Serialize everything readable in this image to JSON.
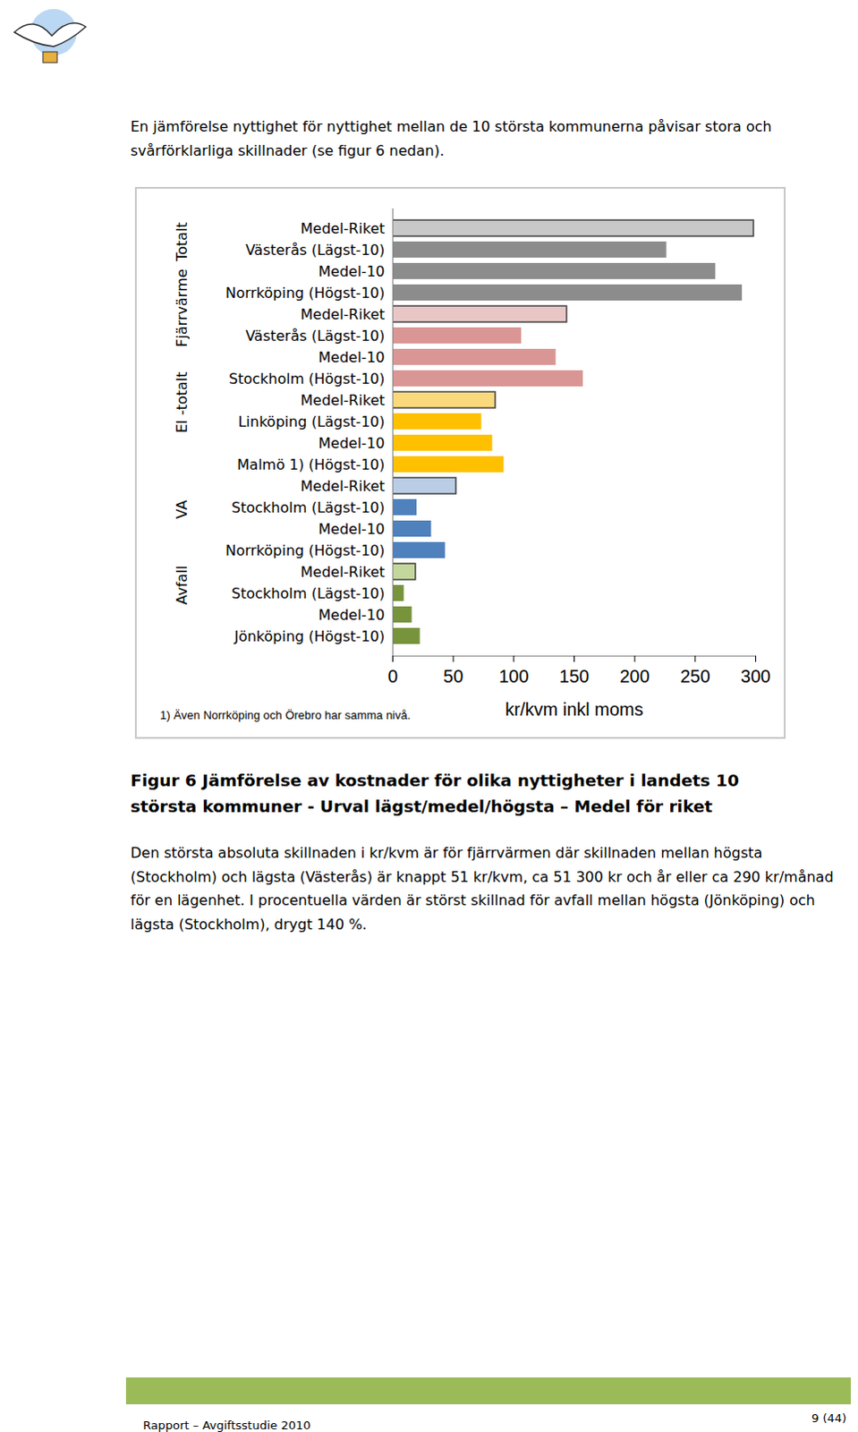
{
  "intro": "En jämförelse nyttighet för nyttighet mellan de 10 största kommunerna påvisar stora och svårförklarliga skillnader (se figur 6 nedan).",
  "chart_data": {
    "type": "bar",
    "orientation": "horizontal",
    "groups": [
      "Totalt",
      "Fjärrvärme",
      "El -totalt",
      "VA",
      "Avfall"
    ],
    "categories": [
      "Medel-Riket",
      "Västerås (Lägst-10)",
      "Medel-10",
      "Norrköping (Högst-10)",
      "Medel-Riket",
      "Västerås (Lägst-10)",
      "Medel-10",
      "Stockholm (Högst-10)",
      "Medel-Riket",
      "Linköping (Lägst-10)",
      "Medel-10",
      "Malmö 1) (Högst-10)",
      "Medel-Riket",
      "Stockholm (Lägst-10)",
      "Medel-10",
      "Norrköping (Högst-10)",
      "Medel-Riket",
      "Stockholm (Lägst-10)",
      "Medel-10",
      "Jönköping (Högst-10)"
    ],
    "values": [
      298.5,
      226.5,
      267,
      289,
      144,
      106.5,
      135,
      157.5,
      85,
      73.5,
      82.5,
      92,
      52.5,
      20,
      32,
      43.5,
      19,
      9.4,
      16,
      22.7
    ],
    "colors": [
      "#c8c8c8",
      "#8c8c8c",
      "#8c8c8c",
      "#8c8c8c",
      "#e9c6c6",
      "#d99694",
      "#d99694",
      "#d99694",
      "#fad97c",
      "#ffc000",
      "#ffc000",
      "#ffc000",
      "#b9cde5",
      "#4f81bd",
      "#4f81bd",
      "#4f81bd",
      "#c3d69b",
      "#77933c",
      "#77933c",
      "#77933c"
    ],
    "xlim": [
      0,
      300
    ],
    "xticks": [
      0,
      50,
      100,
      150,
      200,
      250,
      300
    ],
    "xlabel": "kr/kvm inkl moms",
    "footnote": "1) Även Norrköping och Örebro har samma nivå.",
    "grid": false,
    "data_labels": false
  },
  "caption": "Figur 6 Jämförelse av kostnader för olika nyttigheter i landets 10 största kommuner - Urval lägst/medel/högsta – Medel för riket",
  "body": "Den största absoluta skillnaden i kr/kvm är för fjärrvärmen där skillnaden mellan högsta (Stockholm) och lägsta (Västerås) är knappt 51 kr/kvm, ca 51 300 kr och år eller ca 290 kr/månad för en lägenhet. I procentuella värden är störst skillnad för avfall mellan högsta (Jönköping) och lägsta (Stockholm), drygt 140 %.",
  "footer": {
    "left": "Rapport – Avgiftsstudie 2010",
    "right": "9 (44)"
  }
}
